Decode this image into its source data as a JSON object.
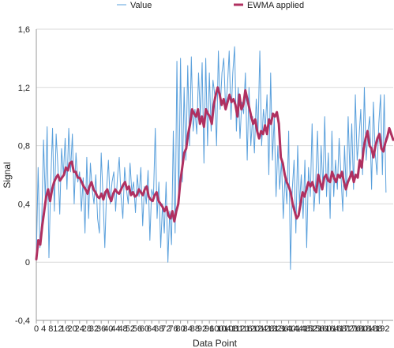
{
  "chart_data": {
    "type": "line",
    "xlabel": "Data Point",
    "ylabel": "Signal",
    "xlim": [
      0,
      198
    ],
    "ylim": [
      -0.4,
      1.6
    ],
    "x_ticks": [
      0,
      4,
      8,
      12,
      16,
      20,
      24,
      28,
      32,
      36,
      40,
      44,
      48,
      52,
      56,
      60,
      64,
      68,
      72,
      76,
      80,
      84,
      88,
      92,
      96,
      100,
      104,
      108,
      112,
      116,
      120,
      124,
      128,
      132,
      136,
      140,
      144,
      148,
      152,
      156,
      160,
      164,
      168,
      172,
      176,
      180,
      184,
      188,
      192
    ],
    "x_tick_labels": [
      "0",
      "4",
      "8",
      "12",
      "16",
      "20",
      "24",
      "28",
      "32",
      "36",
      "40",
      "44",
      "48",
      "52",
      "56",
      "60",
      "64",
      "68",
      "72",
      "76",
      "80",
      "84",
      "88",
      "92",
      "96",
      "100",
      "104",
      "108",
      "112",
      "116",
      "120",
      "124",
      "128",
      "132",
      "136",
      "140",
      "144",
      "148",
      "152",
      "156",
      "160",
      "164",
      "168",
      "172",
      "176",
      "180",
      "184",
      "188",
      "192"
    ],
    "y_ticks": [
      -0.4,
      0,
      0.4,
      0.8,
      1.2,
      1.6
    ],
    "y_tick_labels": [
      "-0,4",
      "0",
      "0,4",
      "0,8",
      "1,2",
      "1,6"
    ],
    "grid": {
      "x": false,
      "y": true
    },
    "legend_position": "top-center",
    "series": [
      {
        "name": "Value",
        "color": "#5aa0dc",
        "values": []
      },
      {
        "name": "EWMA applied",
        "color": "#b03060",
        "values": []
      }
    ]
  }
}
